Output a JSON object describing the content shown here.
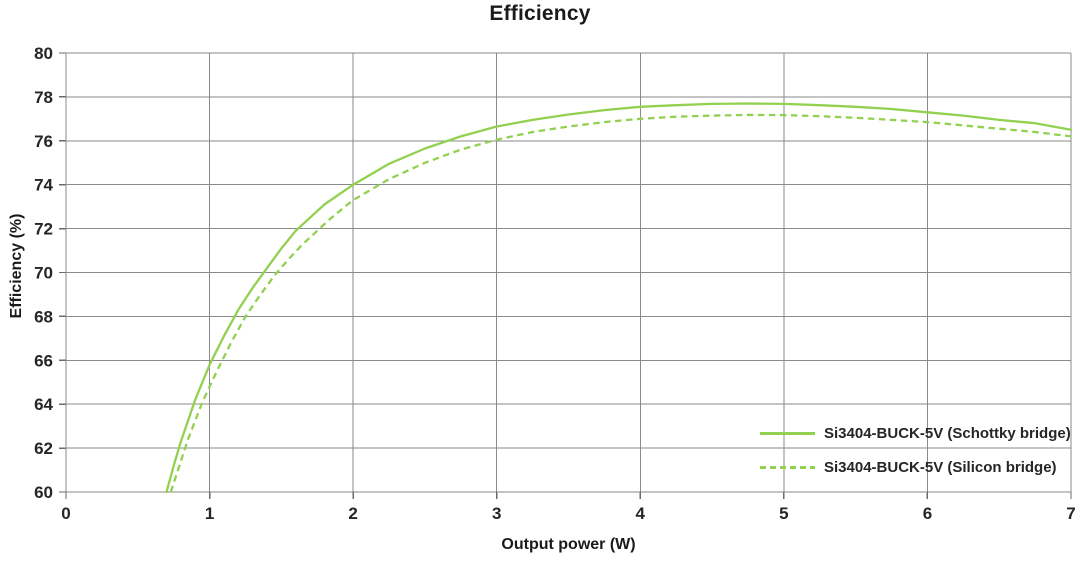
{
  "colors": {
    "accent_green": "#92d050",
    "grid_gray": "#8a8a8a",
    "tick_gray": "#6b6b6b",
    "text_dark": "#262626",
    "background": "#ffffff"
  },
  "chart_data": {
    "type": "line",
    "title": "Efficiency",
    "xlabel": "Output power (W)",
    "ylabel": "Efficiency (%)",
    "xlim": [
      0,
      7
    ],
    "ylim": [
      60,
      80
    ],
    "x_ticks": [
      0,
      1,
      2,
      3,
      4,
      5,
      6,
      7
    ],
    "y_ticks": [
      60,
      62,
      64,
      66,
      68,
      70,
      72,
      74,
      76,
      78,
      80
    ],
    "grid": true,
    "legend_position": "inside-bottom-right",
    "series": [
      {
        "name": "Si3404-BUCK-5V (Schottky bridge)",
        "style": "solid",
        "color": "#92d050",
        "points": [
          [
            0.7,
            60.0
          ],
          [
            0.75,
            61.2
          ],
          [
            0.8,
            62.3
          ],
          [
            0.9,
            64.2
          ],
          [
            1.0,
            65.8
          ],
          [
            1.1,
            67.1
          ],
          [
            1.2,
            68.3
          ],
          [
            1.3,
            69.3
          ],
          [
            1.4,
            70.2
          ],
          [
            1.5,
            71.1
          ],
          [
            1.6,
            71.9
          ],
          [
            1.8,
            73.1
          ],
          [
            2.0,
            74.0
          ],
          [
            2.25,
            74.95
          ],
          [
            2.5,
            75.65
          ],
          [
            2.75,
            76.2
          ],
          [
            3.0,
            76.65
          ],
          [
            3.25,
            76.95
          ],
          [
            3.5,
            77.2
          ],
          [
            3.75,
            77.4
          ],
          [
            4.0,
            77.55
          ],
          [
            4.25,
            77.62
          ],
          [
            4.5,
            77.68
          ],
          [
            4.75,
            77.7
          ],
          [
            5.0,
            77.68
          ],
          [
            5.25,
            77.62
          ],
          [
            5.5,
            77.55
          ],
          [
            5.75,
            77.45
          ],
          [
            6.0,
            77.3
          ],
          [
            6.25,
            77.15
          ],
          [
            6.5,
            76.95
          ],
          [
            6.75,
            76.8
          ],
          [
            7.0,
            76.5
          ]
        ]
      },
      {
        "name": "Si3404-BUCK-5V (Silicon bridge)",
        "style": "dashed",
        "color": "#92d050",
        "points": [
          [
            0.73,
            60.0
          ],
          [
            0.78,
            61.0
          ],
          [
            0.85,
            62.4
          ],
          [
            0.95,
            64.1
          ],
          [
            1.05,
            65.5
          ],
          [
            1.15,
            66.8
          ],
          [
            1.25,
            68.0
          ],
          [
            1.35,
            68.95
          ],
          [
            1.45,
            69.85
          ],
          [
            1.55,
            70.6
          ],
          [
            1.65,
            71.3
          ],
          [
            1.85,
            72.5
          ],
          [
            2.0,
            73.3
          ],
          [
            2.25,
            74.25
          ],
          [
            2.5,
            75.0
          ],
          [
            2.75,
            75.6
          ],
          [
            3.0,
            76.05
          ],
          [
            3.25,
            76.4
          ],
          [
            3.5,
            76.65
          ],
          [
            3.75,
            76.85
          ],
          [
            4.0,
            77.0
          ],
          [
            4.25,
            77.1
          ],
          [
            4.5,
            77.15
          ],
          [
            4.75,
            77.18
          ],
          [
            5.0,
            77.17
          ],
          [
            5.25,
            77.12
          ],
          [
            5.5,
            77.05
          ],
          [
            5.75,
            76.95
          ],
          [
            6.0,
            76.85
          ],
          [
            6.25,
            76.7
          ],
          [
            6.5,
            76.55
          ],
          [
            6.75,
            76.4
          ],
          [
            7.0,
            76.2
          ]
        ]
      }
    ]
  }
}
